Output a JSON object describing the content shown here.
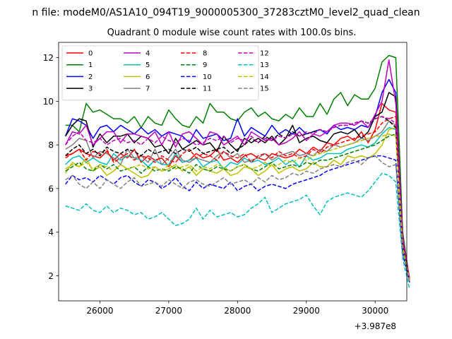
{
  "figure": {
    "suptitle": "n file: modeM0/AS1A10_094T19_9000005300_37283cztM0_level2_quad_clean",
    "title": "Quadrant 0 module wise count rates with 100.0s bins.",
    "offset_label": "+3.987e8"
  },
  "chart_data": {
    "type": "line",
    "title": "Quadrant 0 module wise count rates with 100.0s bins.",
    "xlabel": "",
    "ylabel": "",
    "x_offset": 398700000,
    "x_start": 25500,
    "x_step": 100,
    "xlim": [
      25400,
      30460
    ],
    "ylim": [
      0.85,
      12.7
    ],
    "xticks": [
      26000,
      27000,
      28000,
      29000,
      30000
    ],
    "xtick_labels": [
      "26000",
      "27000",
      "28000",
      "29000",
      "30000"
    ],
    "yticks": [
      2,
      4,
      6,
      8,
      10,
      12
    ],
    "ytick_labels": [
      "2",
      "4",
      "6",
      "8",
      "10",
      "12"
    ],
    "legend": {
      "position": "top-left",
      "columns": 4
    },
    "series": [
      {
        "name": "0",
        "color": "#ff0000",
        "dash": "solid",
        "values": [
          7.5,
          7.6,
          7.8,
          7.6,
          7.5,
          7.4,
          7.7,
          7.3,
          7.6,
          7.4,
          7.8,
          7.2,
          7.5,
          7.3,
          7.4,
          7.0,
          7.5,
          7.2,
          7.3,
          7.6,
          7.4,
          7.5,
          7.8,
          7.3,
          7.4,
          7.2,
          7.5,
          7.6,
          7.4,
          7.3,
          7.6,
          7.5,
          7.4,
          7.5,
          7.8,
          7.6,
          7.9,
          7.7,
          8.1,
          8.0,
          8.3,
          8.4,
          8.2,
          8.6,
          8.1,
          8.7,
          9.9,
          9.6,
          9.5,
          3.5,
          1.9
        ]
      },
      {
        "name": "1",
        "color": "#008000",
        "dash": "solid",
        "values": [
          8.9,
          8.9,
          8.6,
          9.9,
          9.5,
          9.6,
          9.4,
          9.2,
          9.2,
          9.0,
          9.3,
          8.8,
          9.3,
          9.0,
          8.9,
          9.6,
          9.2,
          8.9,
          8.8,
          9.3,
          9.0,
          9.9,
          9.5,
          9.5,
          9.2,
          9.1,
          9.5,
          9.7,
          9.3,
          9.5,
          9.2,
          9.1,
          9.4,
          9.2,
          9.7,
          9.3,
          9.3,
          9.9,
          9.4,
          10.1,
          10.4,
          9.8,
          10.3,
          10.1,
          10.1,
          10.6,
          11.8,
          12.1,
          12.0,
          4.0,
          1.8
        ]
      },
      {
        "name": "2",
        "color": "#0000ff",
        "dash": "solid",
        "values": [
          8.4,
          9.2,
          9.1,
          8.9,
          8.3,
          8.8,
          8.9,
          8.6,
          8.9,
          8.7,
          8.5,
          8.8,
          8.5,
          8.7,
          8.4,
          8.6,
          8.5,
          8.4,
          8.1,
          8.7,
          8.3,
          8.4,
          8.5,
          8.2,
          8.3,
          9.2,
          8.4,
          8.8,
          8.6,
          8.4,
          8.9,
          8.5,
          8.7,
          8.5,
          8.8,
          8.5,
          8.6,
          8.7,
          8.5,
          8.9,
          8.7,
          8.8,
          8.7,
          8.9,
          8.8,
          9.3,
          10.4,
          11.0,
          10.4,
          3.6,
          1.8
        ]
      },
      {
        "name": "3",
        "color": "#000000",
        "dash": "solid",
        "values": [
          8.4,
          8.9,
          9.2,
          9.1,
          7.9,
          8.5,
          8.1,
          8.4,
          8.4,
          8.5,
          8.1,
          8.4,
          8.3,
          7.9,
          8.0,
          7.6,
          8.3,
          7.8,
          8.0,
          8.2,
          8.0,
          8.1,
          7.7,
          8.4,
          8.0,
          7.7,
          8.3,
          8.1,
          8.3,
          8.1,
          8.4,
          8.0,
          8.3,
          8.9,
          8.1,
          8.3,
          8.4,
          8.2,
          8.1,
          8.5,
          8.6,
          8.5,
          8.7,
          8.3,
          8.6,
          9.3,
          9.5,
          10.4,
          10.2,
          3.7,
          1.8
        ]
      },
      {
        "name": "4",
        "color": "#c000c0",
        "dash": "solid",
        "values": [
          8.0,
          8.6,
          8.5,
          8.9,
          8.0,
          8.3,
          8.6,
          8.6,
          8.1,
          8.5,
          8.5,
          8.4,
          8.3,
          8.6,
          8.0,
          8.6,
          7.9,
          8.5,
          8.6,
          8.3,
          8.0,
          8.6,
          8.5,
          8.0,
          8.2,
          8.4,
          8.0,
          8.6,
          8.4,
          8.2,
          8.3,
          8.0,
          8.1,
          8.3,
          8.6,
          8.2,
          8.5,
          8.4,
          8.6,
          8.9,
          9.0,
          9.0,
          8.9,
          9.1,
          8.8,
          9.4,
          10.0,
          11.9,
          9.9,
          3.8,
          1.8
        ]
      },
      {
        "name": "5",
        "color": "#00c0c0",
        "dash": "solid",
        "values": [
          7.1,
          7.4,
          7.5,
          7.2,
          7.4,
          7.2,
          7.1,
          7.6,
          7.3,
          7.5,
          7.4,
          7.3,
          7.0,
          7.3,
          7.1,
          7.1,
          7.6,
          7.2,
          7.3,
          7.4,
          7.0,
          7.2,
          7.3,
          6.9,
          7.2,
          7.1,
          7.4,
          7.2,
          7.3,
          7.1,
          7.2,
          7.4,
          7.1,
          7.3,
          7.0,
          7.5,
          7.3,
          7.4,
          7.6,
          7.6,
          7.6,
          7.8,
          7.9,
          8.0,
          7.9,
          8.1,
          8.5,
          8.8,
          8.7,
          3.2,
          1.7
        ]
      },
      {
        "name": "6",
        "color": "#c0c000",
        "dash": "solid",
        "values": [
          6.7,
          7.2,
          7.0,
          7.4,
          6.8,
          7.0,
          6.6,
          6.8,
          7.1,
          6.9,
          6.7,
          6.5,
          6.6,
          7.0,
          6.8,
          6.9,
          7.1,
          6.8,
          7.0,
          6.6,
          6.9,
          6.8,
          6.7,
          6.9,
          6.6,
          6.7,
          7.0,
          6.9,
          6.6,
          6.8,
          7.1,
          6.7,
          6.9,
          7.0,
          6.8,
          6.9,
          7.2,
          7.0,
          7.0,
          7.3,
          7.1,
          7.5,
          7.4,
          7.5,
          7.4,
          7.6,
          8.0,
          8.7,
          8.8,
          3.3,
          1.8
        ]
      },
      {
        "name": "7",
        "color": "#808080",
        "dash": "solid",
        "values": [
          7.8,
          8.0,
          8.3,
          8.2,
          7.4,
          7.7,
          7.6,
          7.4,
          7.1,
          7.8,
          7.4,
          7.5,
          7.2,
          7.8,
          7.1,
          7.4,
          7.8,
          7.3,
          7.2,
          7.4,
          7.3,
          7.2,
          7.5,
          7.7,
          7.4,
          7.6,
          7.2,
          7.3,
          7.4,
          7.6,
          7.3,
          7.5,
          7.6,
          7.7,
          7.5,
          7.6,
          7.5,
          7.8,
          7.7,
          8.0,
          7.9,
          8.0,
          8.1,
          8.3,
          8.2,
          8.4,
          8.6,
          9.1,
          8.9,
          3.4,
          1.8
        ]
      },
      {
        "name": "8",
        "color": "#ff0000",
        "dash": "dashed",
        "values": [
          7.4,
          7.6,
          7.8,
          7.3,
          7.7,
          7.6,
          7.8,
          7.2,
          7.4,
          7.6,
          7.3,
          7.5,
          7.4,
          7.2,
          7.5,
          7.3,
          7.2,
          7.6,
          7.8,
          7.4,
          7.6,
          7.5,
          7.3,
          7.7,
          7.5,
          7.4,
          7.6,
          7.2,
          7.5,
          7.6,
          7.4,
          7.7,
          7.5,
          7.6,
          7.4,
          7.5,
          7.8,
          7.6,
          7.9,
          8.0,
          8.1,
          8.2,
          8.3,
          8.4,
          8.5,
          8.6,
          9.0,
          9.2,
          9.3,
          3.6,
          1.9
        ]
      },
      {
        "name": "9",
        "color": "#008000",
        "dash": "dashed",
        "values": [
          6.8,
          7.0,
          7.2,
          6.9,
          6.8,
          7.1,
          6.9,
          7.1,
          6.8,
          6.9,
          7.0,
          6.7,
          7.0,
          6.8,
          6.9,
          6.8,
          7.0,
          6.9,
          6.7,
          7.1,
          6.9,
          6.8,
          7.0,
          6.9,
          6.8,
          7.0,
          7.1,
          6.9,
          6.8,
          7.0,
          7.2,
          6.9,
          7.0,
          7.1,
          7.0,
          7.2,
          7.1,
          7.3,
          7.3,
          7.4,
          7.5,
          7.6,
          7.7,
          7.8,
          7.9,
          8.0,
          8.2,
          8.4,
          8.5,
          3.2,
          1.7
        ]
      },
      {
        "name": "10",
        "color": "#0000ff",
        "dash": "dashed",
        "values": [
          6.2,
          6.6,
          6.4,
          6.5,
          6.3,
          6.6,
          6.4,
          6.2,
          6.5,
          6.6,
          6.3,
          6.1,
          6.4,
          6.3,
          6.0,
          6.2,
          6.5,
          6.1,
          5.9,
          6.3,
          6.0,
          6.2,
          6.1,
          6.0,
          6.3,
          5.9,
          6.1,
          6.2,
          5.9,
          6.1,
          6.2,
          6.1,
          6.0,
          6.2,
          6.3,
          6.4,
          6.5,
          6.6,
          6.8,
          6.9,
          7.0,
          7.1,
          7.2,
          7.3,
          7.4,
          7.5,
          7.5,
          7.4,
          7.3,
          3.0,
          1.7
        ]
      },
      {
        "name": "11",
        "color": "#000000",
        "dash": "dashed",
        "values": [
          7.5,
          7.8,
          8.0,
          7.6,
          7.8,
          7.5,
          7.9,
          7.7,
          7.6,
          7.8,
          7.7,
          7.5,
          7.8,
          7.6,
          7.7,
          7.8,
          7.6,
          7.8,
          7.7,
          7.9,
          7.6,
          7.7,
          7.8,
          7.9,
          7.6,
          7.8,
          8.0,
          8.3,
          8.1,
          8.4,
          8.2,
          8.5,
          8.3,
          8.6,
          8.4,
          8.5,
          8.6,
          8.7,
          8.6,
          8.8,
          8.9,
          8.9,
          9.0,
          9.1,
          9.0,
          9.2,
          9.3,
          9.1,
          8.8,
          3.5,
          1.8
        ]
      },
      {
        "name": "12",
        "color": "#c000c0",
        "dash": "dashed",
        "values": [
          8.0,
          8.4,
          8.6,
          8.2,
          8.1,
          8.3,
          8.0,
          8.2,
          8.3,
          8.1,
          8.2,
          8.0,
          8.3,
          8.1,
          8.4,
          8.2,
          8.1,
          8.3,
          8.2,
          8.0,
          8.1,
          8.3,
          8.2,
          8.4,
          8.1,
          8.3,
          8.2,
          8.4,
          8.1,
          8.3,
          8.2,
          8.4,
          8.3,
          8.5,
          8.4,
          8.6,
          8.5,
          8.7,
          8.6,
          8.8,
          8.9,
          8.9,
          9.0,
          9.1,
          9.0,
          9.2,
          9.3,
          9.2,
          9.0,
          3.6,
          1.9
        ]
      },
      {
        "name": "13",
        "color": "#00c0c0",
        "dash": "dashed",
        "values": [
          5.2,
          5.1,
          5.0,
          5.3,
          5.0,
          4.9,
          5.2,
          4.9,
          5.1,
          5.0,
          4.8,
          4.9,
          4.6,
          4.7,
          4.9,
          4.6,
          4.3,
          4.4,
          4.6,
          5.1,
          4.6,
          5.0,
          4.7,
          4.8,
          4.9,
          4.7,
          4.8,
          5.1,
          5.3,
          5.6,
          4.9,
          5.1,
          5.3,
          5.4,
          5.5,
          5.7,
          5.2,
          4.8,
          5.4,
          5.6,
          5.7,
          5.8,
          5.7,
          5.6,
          5.9,
          6.3,
          6.7,
          6.6,
          6.3,
          2.8,
          1.4
        ]
      },
      {
        "name": "14",
        "color": "#c0c000",
        "dash": "dashed",
        "values": [
          6.9,
          7.1,
          7.0,
          7.2,
          6.9,
          7.1,
          7.0,
          6.8,
          7.1,
          6.9,
          7.0,
          7.1,
          6.9,
          7.0,
          6.8,
          7.1,
          6.9,
          7.0,
          7.1,
          6.8,
          7.0,
          6.9,
          7.1,
          7.0,
          6.8,
          7.0,
          7.1,
          6.9,
          7.0,
          7.2,
          7.0,
          7.1,
          7.3,
          7.2,
          7.4,
          7.3,
          7.5,
          7.6,
          7.7,
          7.8,
          7.9,
          8.0,
          8.1,
          8.2,
          8.3,
          8.4,
          8.4,
          8.5,
          8.4,
          3.3,
          1.8
        ]
      },
      {
        "name": "15",
        "color": "#808080",
        "dash": "dashed",
        "values": [
          6.4,
          6.6,
          6.2,
          6.0,
          6.3,
          6.0,
          6.4,
          6.2,
          6.0,
          6.3,
          6.5,
          6.1,
          6.2,
          6.3,
          6.1,
          6.4,
          6.2,
          6.0,
          6.3,
          6.4,
          6.2,
          6.1,
          6.3,
          6.5,
          6.2,
          6.3,
          6.4,
          6.2,
          6.5,
          6.3,
          6.6,
          6.4,
          6.5,
          6.7,
          6.6,
          6.8,
          6.7,
          6.9,
          7.0,
          7.1,
          7.0,
          7.2,
          7.3,
          7.1,
          7.4,
          7.5,
          7.2,
          7.0,
          7.1,
          3.1,
          1.7
        ]
      }
    ]
  }
}
